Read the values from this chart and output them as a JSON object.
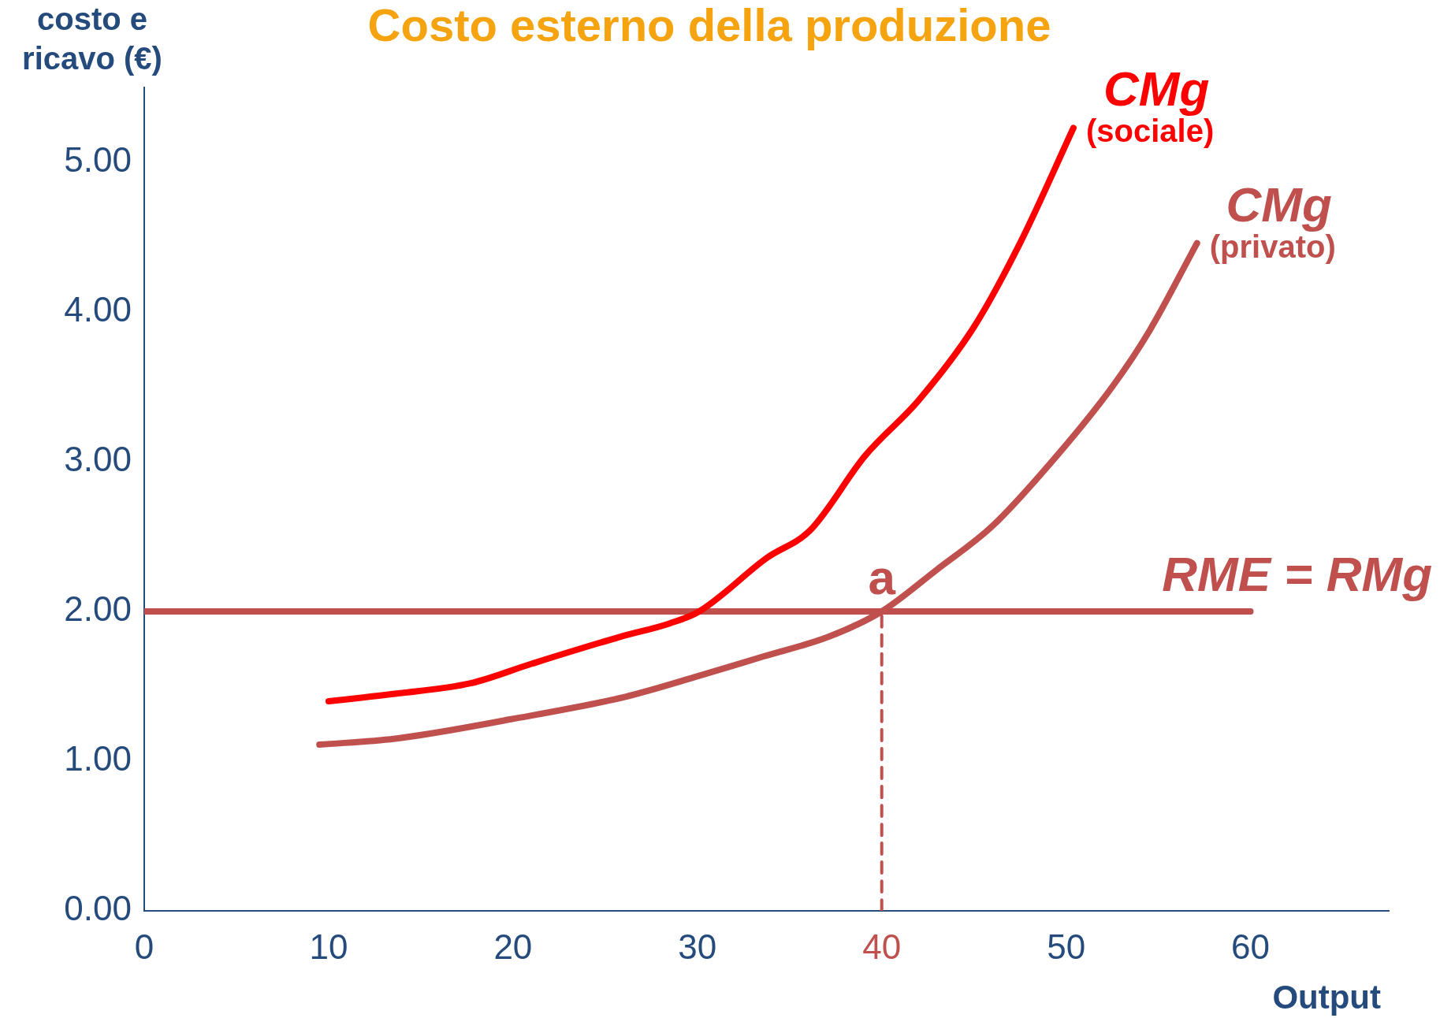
{
  "chart_data": {
    "type": "line",
    "title": "Costo esterno della produzione",
    "xlabel": "Output",
    "ylabel": "costo e\nricavo (€)",
    "xlim": [
      0,
      67.5
    ],
    "xticks": [
      0,
      10,
      20,
      30,
      40,
      50,
      60
    ],
    "ylim": [
      0,
      5.5
    ],
    "yticks": [
      {
        "value": 0,
        "label": "0.00"
      },
      {
        "value": 1,
        "label": "1.00"
      },
      {
        "value": 2,
        "label": "2.00"
      },
      {
        "value": 3,
        "label": "3.00"
      },
      {
        "value": 4,
        "label": "4.00"
      },
      {
        "value": 5,
        "label": "5.00"
      }
    ],
    "grid": false,
    "legend": false,
    "marker": "none",
    "series": [
      {
        "name": "CMg (sociale)",
        "color": "#ff0000",
        "x": [
          10,
          13.6,
          17.7,
          21,
          25.8,
          28.5,
          30.1,
          33.8,
          36.1,
          39.1,
          42,
          45,
          47.5,
          50.4
        ],
        "values": [
          1.4,
          1.45,
          1.52,
          1.65,
          1.83,
          1.92,
          2.0,
          2.36,
          2.54,
          3.04,
          3.41,
          3.9,
          4.46,
          5.23
        ]
      },
      {
        "name": "CMg (privato)",
        "color": "#c0504d",
        "x": [
          9.5,
          13.6,
          19.9,
          26.1,
          30.1,
          33.6,
          37.1,
          40,
          43,
          46,
          49.5,
          52.5,
          54.5,
          57.1
        ],
        "values": [
          1.11,
          1.15,
          1.28,
          1.43,
          1.57,
          1.7,
          1.83,
          2.0,
          2.28,
          2.57,
          3.04,
          3.5,
          3.87,
          4.46
        ]
      },
      {
        "name": "RME = RMg",
        "color": "#c0504d",
        "x": [
          0,
          60
        ],
        "values": [
          2,
          2
        ]
      },
      {
        "color": "#c0504d",
        "line_style": "dashed",
        "x": [
          40,
          40
        ],
        "values": [
          0,
          2
        ]
      }
    ],
    "annotations": [
      {
        "text": "a",
        "x": 40,
        "y": 2
      }
    ]
  }
}
